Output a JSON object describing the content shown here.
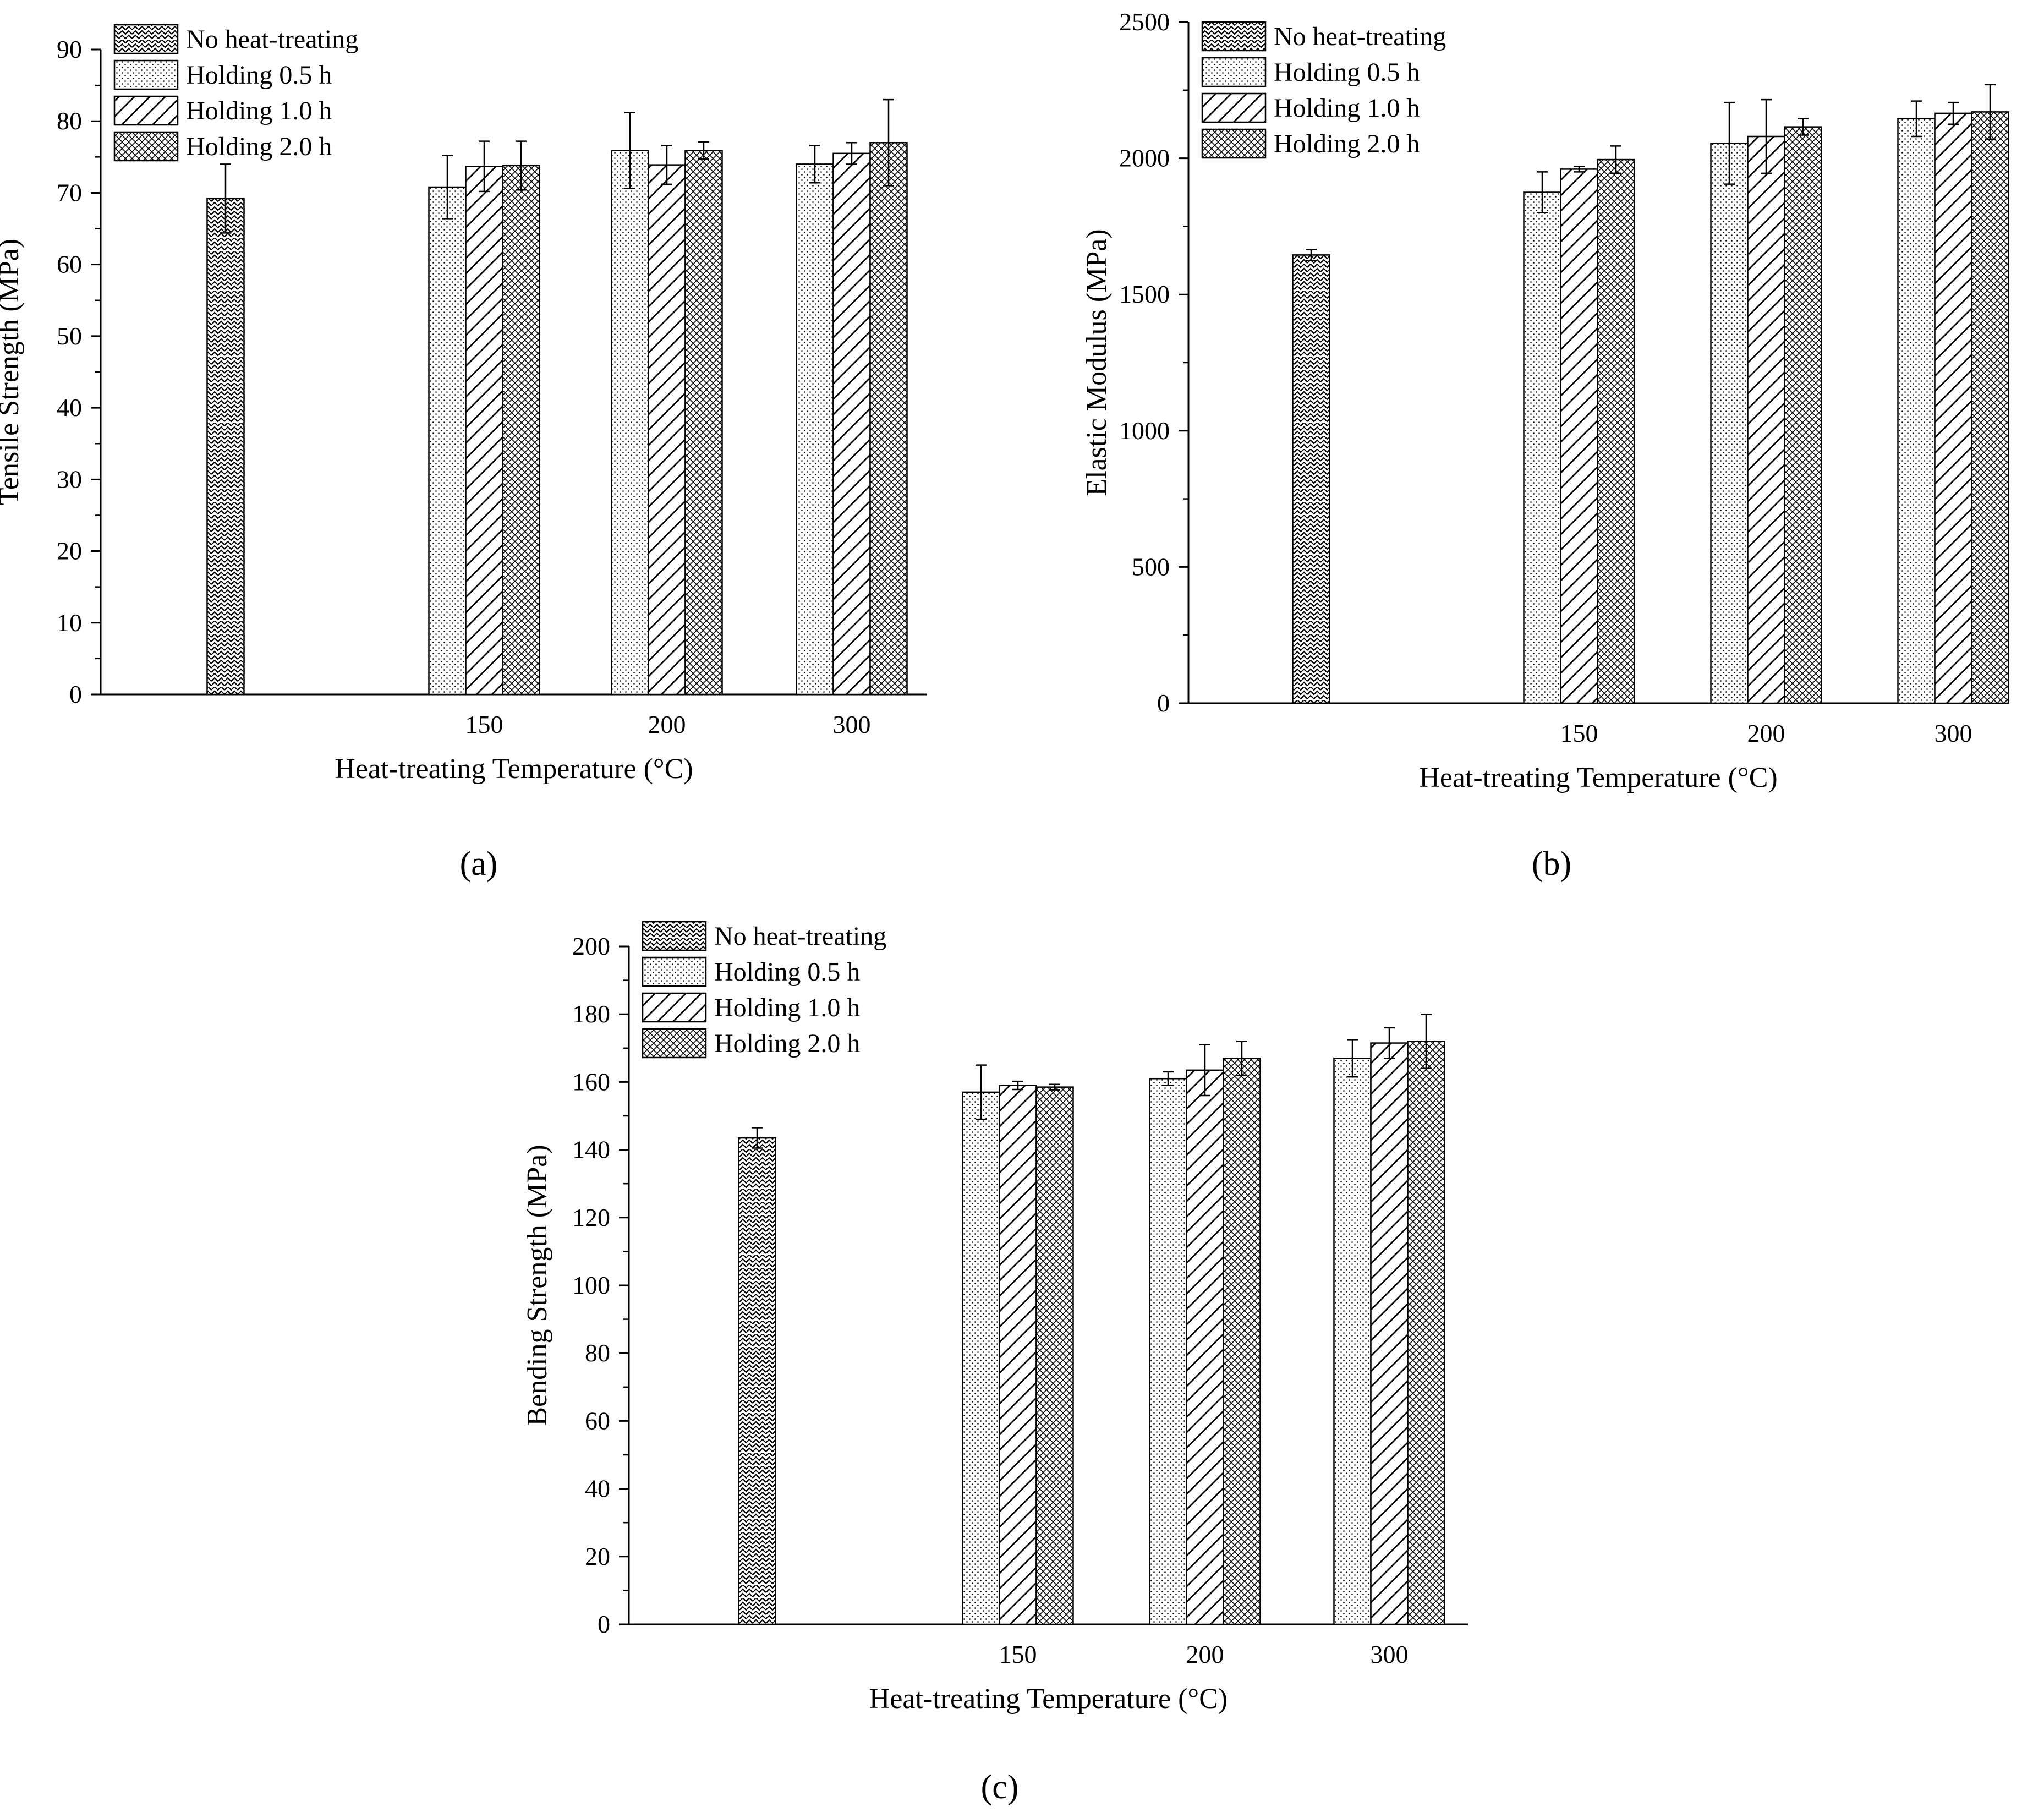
{
  "colors": {
    "ink": "#000000",
    "background": "#ffffff"
  },
  "legend": [
    {
      "name": "No heat-treating",
      "pattern": "zigzag"
    },
    {
      "name": "Holding 0.5 h",
      "pattern": "dots"
    },
    {
      "name": "Holding 1.0 h",
      "pattern": "diagonal"
    },
    {
      "name": "Holding 2.0 h",
      "pattern": "crosshatch"
    }
  ],
  "chart_data": [
    {
      "panel": "(a)",
      "type": "bar",
      "ylabel": "Tensile Strength (MPa)",
      "xlabel": "Heat-treating Temperature (°C)",
      "ylim": [
        0,
        90
      ],
      "yticks": [
        0,
        10,
        20,
        30,
        40,
        50,
        60,
        70,
        80,
        90
      ],
      "legend_position": "top-left",
      "groups": [
        {
          "category": "",
          "bars": [
            {
              "series": "No heat-treating",
              "value": 69.2,
              "err": 4.8
            }
          ]
        },
        {
          "category": "150",
          "bars": [
            {
              "series": "Holding 0.5 h",
              "value": 70.8,
              "err": 4.4
            },
            {
              "series": "Holding 1.0 h",
              "value": 73.7,
              "err": 3.5
            },
            {
              "series": "Holding 2.0 h",
              "value": 73.8,
              "err": 3.4
            }
          ]
        },
        {
          "category": "200",
          "bars": [
            {
              "series": "Holding 0.5 h",
              "value": 75.9,
              "err": 5.3
            },
            {
              "series": "Holding 1.0 h",
              "value": 73.9,
              "err": 2.7
            },
            {
              "series": "Holding 2.0 h",
              "value": 75.9,
              "err": 1.2
            }
          ]
        },
        {
          "category": "300",
          "bars": [
            {
              "series": "Holding 0.5 h",
              "value": 74.0,
              "err": 2.6
            },
            {
              "series": "Holding 1.0 h",
              "value": 75.5,
              "err": 1.5
            },
            {
              "series": "Holding 2.0 h",
              "value": 77.0,
              "err": 6.0
            }
          ]
        }
      ]
    },
    {
      "panel": "(b)",
      "type": "bar",
      "ylabel": "Elastic Modulus (MPa)",
      "xlabel": "Heat-treating Temperature (°C)",
      "ylim": [
        0,
        2500
      ],
      "yticks": [
        0,
        500,
        1000,
        1500,
        2000,
        2500
      ],
      "legend_position": "top-left",
      "groups": [
        {
          "category": "",
          "bars": [
            {
              "series": "No heat-treating",
              "value": 1645,
              "err": 20
            }
          ]
        },
        {
          "category": "150",
          "bars": [
            {
              "series": "Holding 0.5 h",
              "value": 1875,
              "err": 75
            },
            {
              "series": "Holding 1.0 h",
              "value": 1960,
              "err": 10
            },
            {
              "series": "Holding 2.0 h",
              "value": 1995,
              "err": 50
            }
          ]
        },
        {
          "category": "200",
          "bars": [
            {
              "series": "Holding 0.5 h",
              "value": 2055,
              "err": 150
            },
            {
              "series": "Holding 1.0 h",
              "value": 2080,
              "err": 135
            },
            {
              "series": "Holding 2.0 h",
              "value": 2115,
              "err": 30
            }
          ]
        },
        {
          "category": "300",
          "bars": [
            {
              "series": "Holding 0.5 h",
              "value": 2145,
              "err": 65
            },
            {
              "series": "Holding 1.0 h",
              "value": 2165,
              "err": 40
            },
            {
              "series": "Holding 2.0 h",
              "value": 2170,
              "err": 100
            }
          ]
        }
      ]
    },
    {
      "panel": "(c)",
      "type": "bar",
      "ylabel": "Bending Strength (MPa)",
      "xlabel": "Heat-treating Temperature (°C)",
      "ylim": [
        0,
        200
      ],
      "yticks": [
        0,
        20,
        40,
        60,
        80,
        100,
        120,
        140,
        160,
        180,
        200
      ],
      "legend_position": "top-left",
      "groups": [
        {
          "category": "",
          "bars": [
            {
              "series": "No heat-treating",
              "value": 143.5,
              "err": 3.0
            }
          ]
        },
        {
          "category": "150",
          "bars": [
            {
              "series": "Holding 0.5 h",
              "value": 157.0,
              "err": 8.0
            },
            {
              "series": "Holding 1.0 h",
              "value": 159.0,
              "err": 1.2
            },
            {
              "series": "Holding 2.0 h",
              "value": 158.5,
              "err": 0.8
            }
          ]
        },
        {
          "category": "200",
          "bars": [
            {
              "series": "Holding 0.5 h",
              "value": 161.0,
              "err": 2.0
            },
            {
              "series": "Holding 1.0 h",
              "value": 163.5,
              "err": 7.5
            },
            {
              "series": "Holding 2.0 h",
              "value": 167.0,
              "err": 5.0
            }
          ]
        },
        {
          "category": "300",
          "bars": [
            {
              "series": "Holding 0.5 h",
              "value": 167.0,
              "err": 5.5
            },
            {
              "series": "Holding 1.0 h",
              "value": 171.5,
              "err": 4.5
            },
            {
              "series": "Holding 2.0 h",
              "value": 172.0,
              "err": 8.0
            }
          ]
        }
      ]
    }
  ]
}
